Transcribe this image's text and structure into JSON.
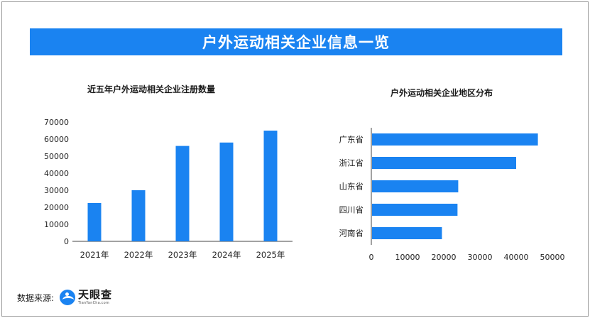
{
  "banner": {
    "title": "户外运动相关企业信息一览"
  },
  "colors": {
    "accent": "#1a83f1",
    "bar": "#1a83f1",
    "axis": "#444444"
  },
  "chart_data": [
    {
      "type": "bar",
      "orientation": "vertical",
      "title": "近五年户外运动相关企业注册数量",
      "categories": [
        "2021年",
        "2022年",
        "2023年",
        "2024年",
        "2025年"
      ],
      "values": [
        22500,
        30000,
        56000,
        58000,
        65000
      ],
      "ylim": [
        0,
        70000
      ],
      "yticks": [
        "0",
        "10000",
        "20000",
        "30000",
        "40000",
        "50000",
        "60000",
        "70000"
      ],
      "grid": false,
      "legend": "none"
    },
    {
      "type": "bar",
      "orientation": "horizontal",
      "title": "户外运动相关企业地区分布",
      "categories": [
        "广东省",
        "浙江省",
        "山东省",
        "四川省",
        "河南省"
      ],
      "values": [
        46000,
        40000,
        24000,
        23800,
        19500
      ],
      "xlim": [
        0,
        50000
      ],
      "xticks": [
        "0",
        "10000",
        "20000",
        "30000",
        "40000",
        "50000"
      ],
      "grid": false,
      "legend": "none"
    }
  ],
  "footer": {
    "source_label": "数据来源:",
    "logo_icon": "tianyancha-logo-icon",
    "logo_name": "天眼查",
    "logo_domain": "TianYanCha.com"
  }
}
